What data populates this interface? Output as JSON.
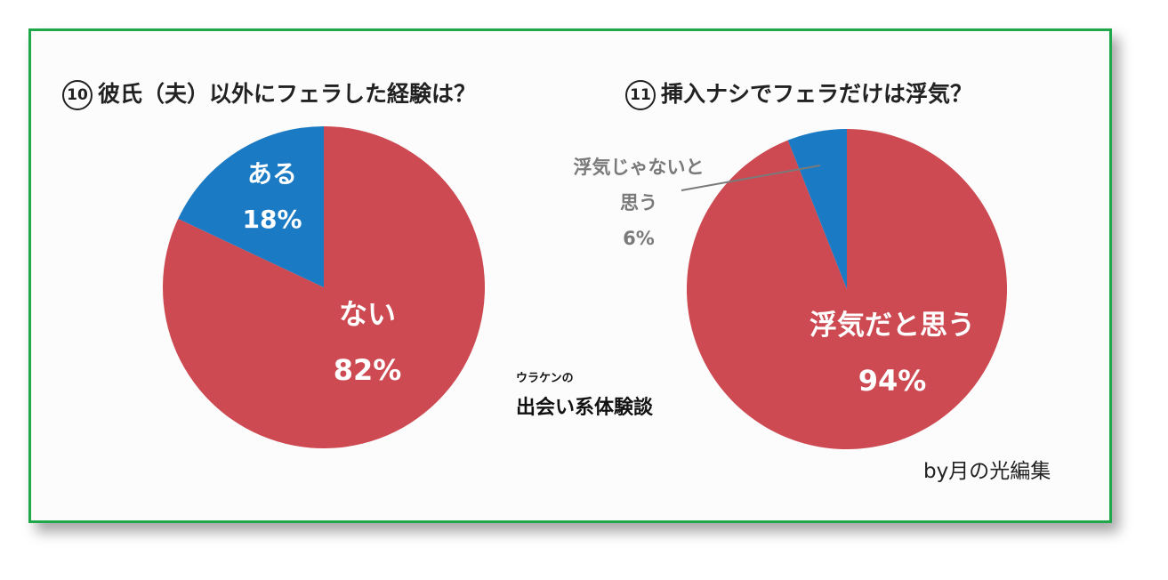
{
  "colors": {
    "red": "#cd4a52",
    "blue": "#1a7ac4",
    "frame": "#1fa84a",
    "gray_label": "#7a7a7a"
  },
  "chart_data": [
    {
      "type": "pie",
      "title": "⑩ 彼氏（夫）以外にフェラした経験は？",
      "title_num": "10",
      "title_text": "彼氏（夫）以外にフェラした経験は？",
      "slices": [
        {
          "label": "ない",
          "value": 82,
          "value_label": "82%",
          "color": "#cd4a52"
        },
        {
          "label": "ある",
          "value": 18,
          "value_label": "18%",
          "color": "#1a7ac4"
        }
      ]
    },
    {
      "type": "pie",
      "title": "⑪ 挿入ナシでフェラだけは浮気？",
      "title_num": "11",
      "title_text": "挿入ナシでフェラだけは浮気？",
      "slices": [
        {
          "label": "浮気だと思う",
          "value": 94,
          "value_label": "94%",
          "color": "#cd4a52"
        },
        {
          "label": "浮気じゃないと思う",
          "label_line1": "浮気じゃないと",
          "label_line2": "思う",
          "value": 6,
          "value_label": "6%",
          "color": "#1a7ac4"
        }
      ]
    }
  ],
  "center": {
    "small": "ウラケンの",
    "large": "出会い系体験談"
  },
  "credit": "by月の光編集"
}
